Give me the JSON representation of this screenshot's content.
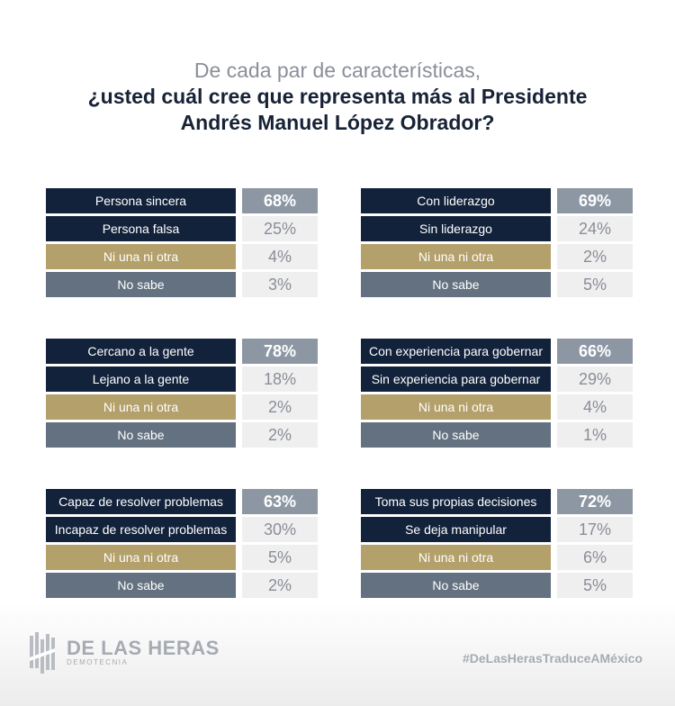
{
  "title": {
    "line1": "De cada par de características,",
    "line2": "¿usted cuál cree que representa más al Presidente",
    "line3": "Andrés Manuel López Obrador?"
  },
  "colors": {
    "positive": "#12223b",
    "negative": "#12223b",
    "neither": "#b3a06a",
    "dont_know": "#647180",
    "highlight_pct": "#8d97a4",
    "pct_bg": "#efeff0"
  },
  "chart_data": {
    "type": "table",
    "panels": [
      {
        "rows": [
          {
            "label": "Persona sincera",
            "value": "68%"
          },
          {
            "label": "Persona falsa",
            "value": "25%"
          },
          {
            "label": "Ni una ni otra",
            "value": "4%"
          },
          {
            "label": "No sabe",
            "value": "3%"
          }
        ]
      },
      {
        "rows": [
          {
            "label": "Con liderazgo",
            "value": "69%"
          },
          {
            "label": "Sin liderazgo",
            "value": "24%"
          },
          {
            "label": "Ni una ni otra",
            "value": "2%"
          },
          {
            "label": "No sabe",
            "value": "5%"
          }
        ]
      },
      {
        "rows": [
          {
            "label": "Cercano a la gente",
            "value": "78%"
          },
          {
            "label": "Lejano a la gente",
            "value": "18%"
          },
          {
            "label": "Ni una ni otra",
            "value": "2%"
          },
          {
            "label": "No sabe",
            "value": "2%"
          }
        ]
      },
      {
        "rows": [
          {
            "label": "Con experiencia para gobernar",
            "value": "66%"
          },
          {
            "label": "Sin experiencia para gobernar",
            "value": "29%"
          },
          {
            "label": "Ni una ni otra",
            "value": "4%"
          },
          {
            "label": "No sabe",
            "value": "1%"
          }
        ]
      },
      {
        "rows": [
          {
            "label": "Capaz de resolver problemas",
            "value": "63%"
          },
          {
            "label": "Incapaz de resolver problemas",
            "value": "30%"
          },
          {
            "label": "Ni una ni otra",
            "value": "5%"
          },
          {
            "label": "No sabe",
            "value": "2%"
          }
        ]
      },
      {
        "rows": [
          {
            "label": "Toma sus propias decisiones",
            "value": "72%"
          },
          {
            "label": "Se deja manipular",
            "value": "17%"
          },
          {
            "label": "Ni una ni otra",
            "value": "6%"
          },
          {
            "label": "No sabe",
            "value": "5%"
          }
        ]
      }
    ]
  },
  "footer": {
    "logo_icon": "de-las-heras-logo-icon",
    "brand": "DE LAS HERAS",
    "brand_sub": "DEMOTECNIA",
    "hashtag": "#DeLasHerasTraduceAMéxico"
  }
}
